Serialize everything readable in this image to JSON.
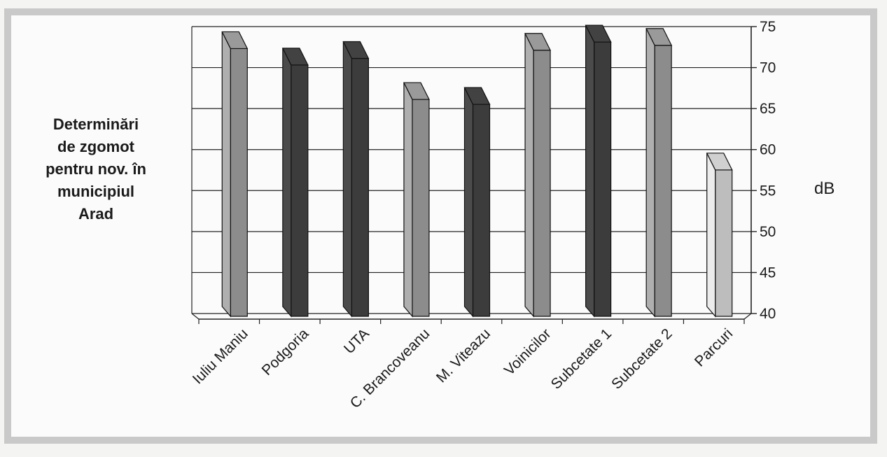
{
  "chart_data": {
    "type": "bar",
    "title": "Determinări\nde zgomot\npentru nov.  în\nmunicipiul\nArad",
    "ylabel": "dB",
    "ylim": [
      40,
      75
    ],
    "yticks": [
      "40",
      "45",
      "50",
      "55",
      "60",
      "65",
      "70",
      "75"
    ],
    "categories": [
      "Iuliu Maniu",
      "Podgoria",
      "UTA",
      "C. Brancoveanu",
      "M. Viteazu",
      "Voinicilor",
      "Subcetate 1",
      "Subcetate 2",
      "Parcuri"
    ],
    "values": [
      73,
      71,
      71.8,
      66.8,
      66.2,
      72.8,
      73.8,
      73.4,
      58.2
    ],
    "colors": [
      "#8c8c8c",
      "#3c3c3c",
      "#3c3c3c",
      "#8c8c8c",
      "#3c3c3c",
      "#8c8c8c",
      "#3c3c3c",
      "#8c8c8c",
      "#bdbdbd"
    ],
    "legend": "none",
    "grid": true
  }
}
